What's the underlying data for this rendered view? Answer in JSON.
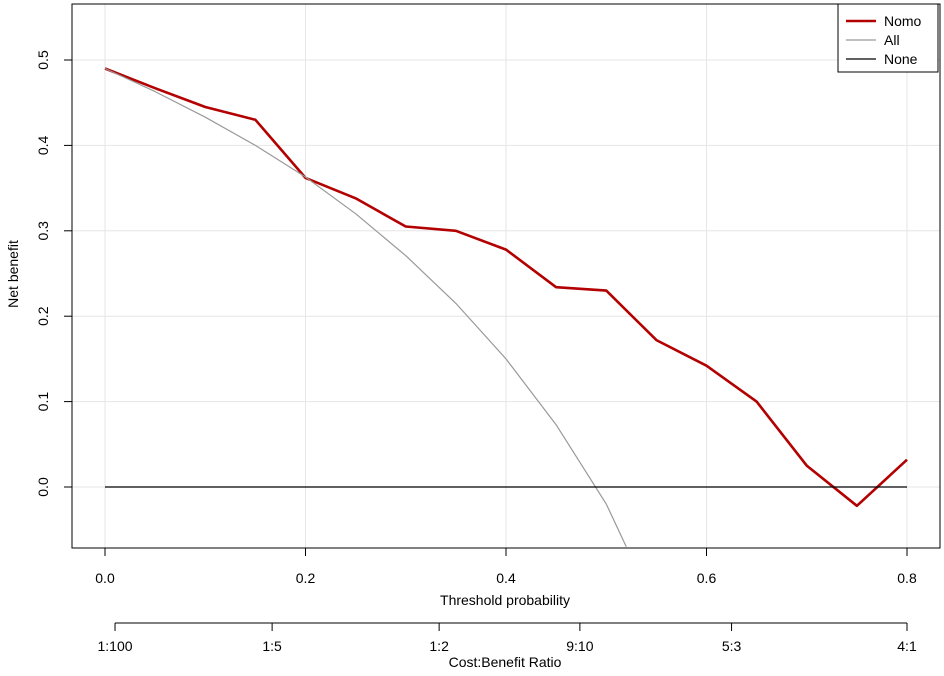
{
  "chart_data": {
    "type": "line",
    "xlabel": "Threshold probability",
    "ylabel": "Net benefit",
    "xlim": [
      0.0,
      0.8
    ],
    "ylim": [
      -0.07,
      0.5
    ],
    "grid": true,
    "legend_position": "top-right",
    "x_ticks": [
      "0.0",
      "0.2",
      "0.4",
      "0.6",
      "0.8"
    ],
    "y_ticks": [
      "0.0",
      "0.1",
      "0.2",
      "0.3",
      "0.4",
      "0.5"
    ],
    "secondary_axis": {
      "label": "Cost:Benefit Ratio",
      "ticks": [
        {
          "x": 0.01,
          "label": "1:100"
        },
        {
          "x": 0.1667,
          "label": "1:5"
        },
        {
          "x": 0.3333,
          "label": "1:2"
        },
        {
          "x": 0.4737,
          "label": "9:10"
        },
        {
          "x": 0.625,
          "label": "5:3"
        },
        {
          "x": 0.8,
          "label": "4:1"
        }
      ]
    },
    "series": [
      {
        "name": "Nomo",
        "color": "#b30000",
        "x": [
          0.0,
          0.05,
          0.1,
          0.15,
          0.2,
          0.25,
          0.3,
          0.35,
          0.4,
          0.45,
          0.5,
          0.55,
          0.6,
          0.65,
          0.7,
          0.75,
          0.8
        ],
        "y": [
          0.49,
          0.467,
          0.445,
          0.43,
          0.362,
          0.338,
          0.305,
          0.3,
          0.278,
          0.234,
          0.23,
          0.172,
          0.142,
          0.1,
          0.025,
          -0.022,
          0.032
        ]
      },
      {
        "name": "All",
        "color": "#999999",
        "x": [
          0.0,
          0.05,
          0.1,
          0.15,
          0.2,
          0.25,
          0.3,
          0.35,
          0.4,
          0.45,
          0.5,
          0.52
        ],
        "y": [
          0.49,
          0.463,
          0.433,
          0.4,
          0.363,
          0.32,
          0.271,
          0.215,
          0.15,
          0.073,
          -0.02,
          -0.07
        ]
      },
      {
        "name": "None",
        "color": "#000000",
        "x": [
          0.0,
          0.8
        ],
        "y": [
          0.0,
          0.0
        ]
      }
    ]
  }
}
